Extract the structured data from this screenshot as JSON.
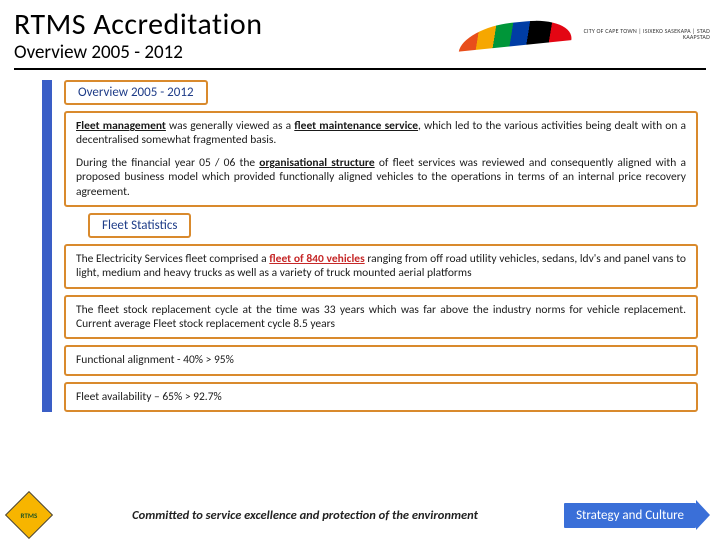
{
  "header": {
    "title": "RTMS Accreditation",
    "subtitle": "Overview 2005 - 2012",
    "cityText": "CITY OF CAPE TOWN | ISIXEKO SASEKAPA | STAD KAAPSTAD"
  },
  "tabs": {
    "overview": "Overview 2005 - 2012",
    "stats": "Fleet Statistics"
  },
  "overviewBox": {
    "p1a": "Fleet management",
    "p1b": " was generally viewed as a ",
    "p1c": "fleet maintenance service",
    "p1d": ", which led to the various activities being dealt with on a decentralised somewhat fragmented basis.",
    "p2a": "During the financial year 05 / 06 the ",
    "p2b": "organisational structure",
    "p2c": " of fleet services was reviewed and consequently aligned with a proposed business model which provided functionally aligned vehicles to the operations in terms of an internal price recovery agreement."
  },
  "statsBoxes": {
    "b1a": "The Electricity Services fleet comprised a ",
    "b1b": "fleet of 840 vehicles",
    "b1c": " ranging from off road utility vehicles, sedans, ldv's and panel vans to light, medium and heavy trucks as well as a variety of truck mounted aerial platforms",
    "b2": "The fleet stock replacement cycle at the time was 33 years which was far above the industry norms for vehicle replacement. Current average  Fleet stock replacement cycle 8.5 years",
    "b3": "Functional alignment -  40% > 95%",
    "b4": "Fleet availability – 65% > 92.7%"
  },
  "footer": {
    "badge": "RTMS",
    "commitment": "Committed to service excellence and protection of the environment",
    "cta": "Strategy and Culture"
  },
  "colors": {
    "boxBorder": "#d98a2d",
    "tabText": "#1e3c88",
    "accent": "#3a5ec6",
    "cta": "#3a6fd8",
    "highlight": "#c62828"
  }
}
